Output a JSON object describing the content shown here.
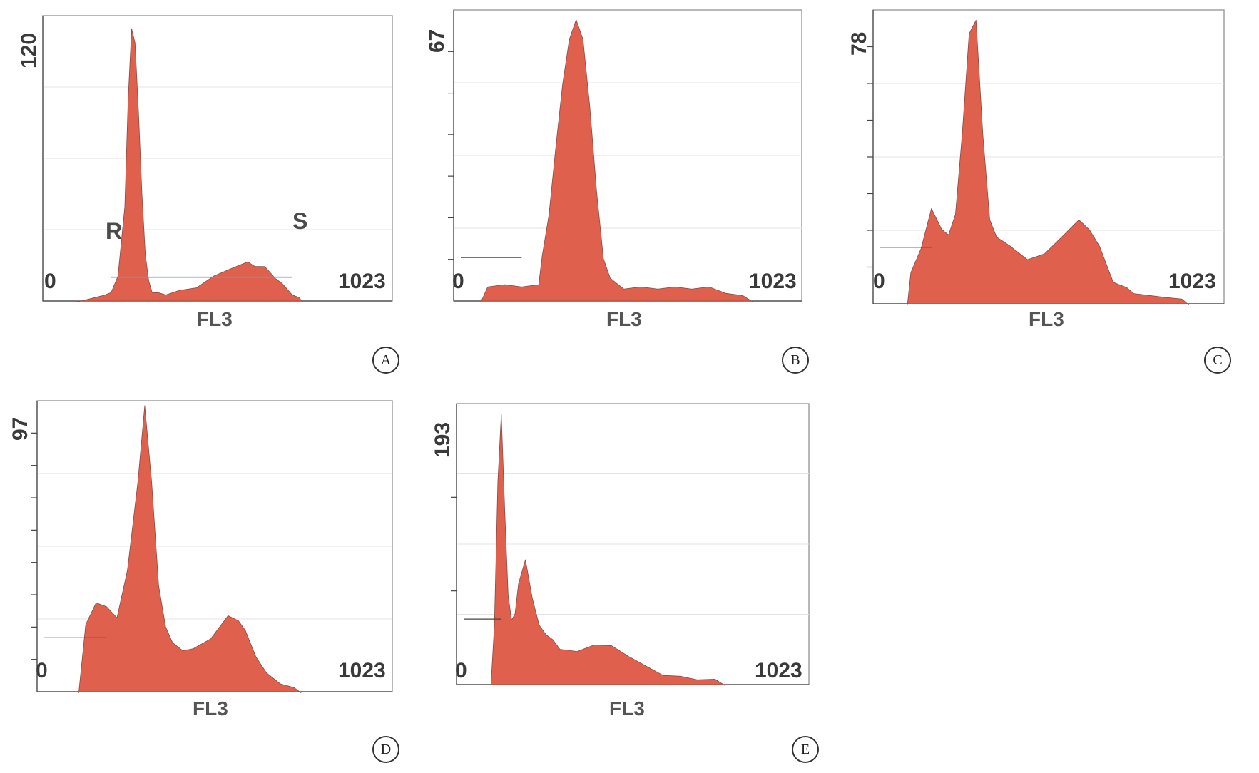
{
  "chart_data": [
    {
      "panel": "A",
      "type": "area",
      "xlabel": "FL3",
      "xlim": [
        0,
        1023
      ],
      "ylim": [
        0,
        120
      ],
      "x_tick_labels": [
        "0",
        "1023"
      ],
      "y_max_label": "120",
      "markers": [
        "R",
        "S"
      ],
      "gate_y": 10,
      "x": [
        100,
        180,
        200,
        220,
        240,
        250,
        260,
        270,
        280,
        290,
        300,
        310,
        320,
        340,
        360,
        400,
        450,
        500,
        550,
        600,
        620,
        650,
        680,
        700,
        730,
        750,
        760
      ],
      "y": [
        0,
        2,
        4,
        10,
        40,
        85,
        115,
        108,
        80,
        45,
        20,
        8,
        4,
        3,
        3,
        4,
        6,
        10,
        14,
        16,
        15,
        14,
        10,
        7,
        3,
        1,
        0
      ]
    },
    {
      "panel": "B",
      "type": "area",
      "xlabel": "FL3",
      "xlim": [
        0,
        1023
      ],
      "ylim": [
        0,
        67
      ],
      "x_tick_labels": [
        "0",
        "1023"
      ],
      "y_max_label": "67",
      "gate_y": 10,
      "x": [
        80,
        100,
        150,
        200,
        250,
        260,
        280,
        300,
        320,
        340,
        360,
        380,
        400,
        420,
        440,
        460,
        500,
        550,
        600,
        650,
        700,
        750,
        800,
        850,
        880
      ],
      "y": [
        0,
        3,
        4,
        3,
        4,
        10,
        20,
        35,
        50,
        60,
        65,
        60,
        45,
        25,
        10,
        5,
        3,
        3,
        3,
        3,
        3,
        3,
        2,
        1,
        0
      ]
    },
    {
      "panel": "C",
      "type": "area",
      "xlabel": "FL3",
      "xlim": [
        0,
        1023
      ],
      "ylim": [
        0,
        78
      ],
      "x_tick_labels": [
        "0",
        "1023"
      ],
      "y_max_label": "78",
      "gate_y": 15,
      "x": [
        100,
        110,
        140,
        170,
        200,
        220,
        240,
        260,
        280,
        300,
        320,
        340,
        360,
        400,
        450,
        500,
        550,
        600,
        630,
        660,
        700,
        740,
        760,
        800,
        850,
        900,
        920
      ],
      "y": [
        0,
        8,
        15,
        25,
        20,
        18,
        24,
        45,
        72,
        75,
        45,
        22,
        18,
        15,
        12,
        13,
        18,
        22,
        20,
        15,
        6,
        4,
        3,
        2,
        2,
        1,
        0
      ]
    },
    {
      "panel": "D",
      "type": "area",
      "xlabel": "FL3",
      "xlim": [
        0,
        1023
      ],
      "ylim": [
        0,
        97
      ],
      "x_tick_labels": [
        "0",
        "1023"
      ],
      "y_max_label": "97",
      "gate_y": 18,
      "x": [
        120,
        140,
        170,
        200,
        230,
        260,
        290,
        310,
        330,
        350,
        370,
        390,
        420,
        450,
        500,
        550,
        580,
        600,
        630,
        660,
        700,
        740,
        760
      ],
      "y": [
        0,
        22,
        30,
        28,
        25,
        40,
        70,
        95,
        70,
        35,
        22,
        16,
        14,
        14,
        18,
        25,
        24,
        20,
        12,
        6,
        3,
        1,
        0
      ]
    },
    {
      "panel": "E",
      "type": "area",
      "xlabel": "FL3",
      "xlim": [
        0,
        1023
      ],
      "ylim": [
        0,
        193
      ],
      "x_tick_labels": [
        "0",
        "1023"
      ],
      "y_max_label": "193",
      "gate_y": 45,
      "x": [
        100,
        110,
        120,
        130,
        140,
        150,
        160,
        170,
        180,
        200,
        220,
        240,
        260,
        280,
        300,
        350,
        400,
        450,
        500,
        550,
        600,
        650,
        700,
        750,
        780
      ],
      "y": [
        0,
        40,
        140,
        185,
        120,
        60,
        45,
        48,
        70,
        85,
        60,
        40,
        35,
        30,
        25,
        22,
        28,
        26,
        20,
        12,
        7,
        5,
        4,
        3,
        0
      ]
    }
  ],
  "panel_badges": [
    "A",
    "B",
    "C",
    "D",
    "E"
  ]
}
